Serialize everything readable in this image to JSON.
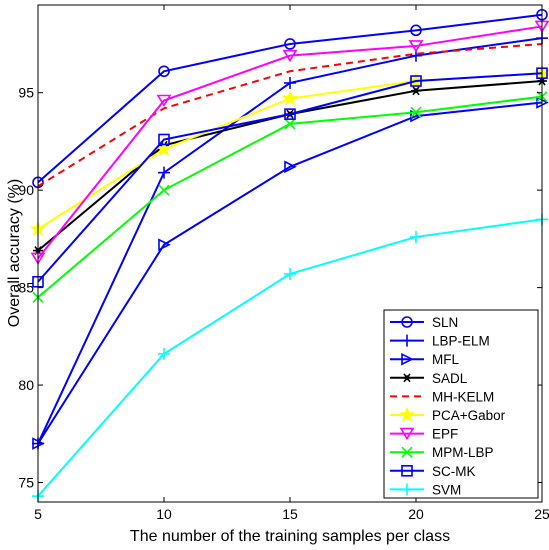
{
  "chart_data": {
    "type": "line",
    "title": "",
    "xlabel": "The number of the training samples per class",
    "ylabel": "Overall accuracy (%)",
    "x": [
      5,
      10,
      15,
      20,
      25
    ],
    "xlim": [
      5,
      25
    ],
    "ylim": [
      74,
      99.5
    ],
    "xticks": [
      5,
      10,
      15,
      20,
      25
    ],
    "yticks": [
      75,
      80,
      85,
      90,
      95
    ],
    "grid": false,
    "legend_position": "bottom-right",
    "series": [
      {
        "name": "SLN",
        "color": "#0000ff",
        "marker": "circle",
        "dash": "",
        "values": [
          90.4,
          96.1,
          97.5,
          98.2,
          99.0
        ]
      },
      {
        "name": "LBP-ELM",
        "color": "#0000ff",
        "marker": "plus",
        "dash": "",
        "values": [
          77.0,
          90.9,
          95.5,
          96.9,
          97.8
        ]
      },
      {
        "name": "MFL",
        "color": "#0000ff",
        "marker": "triangle-right",
        "dash": "",
        "values": [
          77.0,
          87.2,
          91.2,
          93.8,
          94.5
        ]
      },
      {
        "name": "SADL",
        "color": "#000000",
        "marker": "asterisk",
        "dash": "",
        "values": [
          86.9,
          92.3,
          93.9,
          95.1,
          95.6
        ]
      },
      {
        "name": "MH-KELM",
        "color": "#ff0000",
        "marker": "none",
        "dash": "7,5",
        "values": [
          90.2,
          94.2,
          96.1,
          97.0,
          97.5
        ]
      },
      {
        "name": "PCA+Gabor",
        "color": "#ffff00",
        "marker": "star",
        "dash": "",
        "values": [
          88.0,
          92.1,
          94.7,
          95.6,
          96.0
        ]
      },
      {
        "name": "EPF",
        "color": "#ff00ff",
        "marker": "triangle-down",
        "dash": "",
        "values": [
          86.5,
          94.6,
          96.9,
          97.4,
          98.4
        ]
      },
      {
        "name": "MPM-LBP",
        "color": "#00ff00",
        "marker": "x",
        "dash": "",
        "values": [
          84.5,
          90.0,
          93.4,
          94.0,
          94.8
        ]
      },
      {
        "name": "SC-MK",
        "color": "#0000ff",
        "marker": "square",
        "dash": "",
        "values": [
          85.3,
          92.6,
          93.9,
          95.6,
          96.0
        ]
      },
      {
        "name": "SVM",
        "color": "#00ffff",
        "marker": "plus",
        "dash": "",
        "values": [
          74.3,
          81.6,
          85.7,
          87.6,
          88.5
        ]
      }
    ]
  }
}
